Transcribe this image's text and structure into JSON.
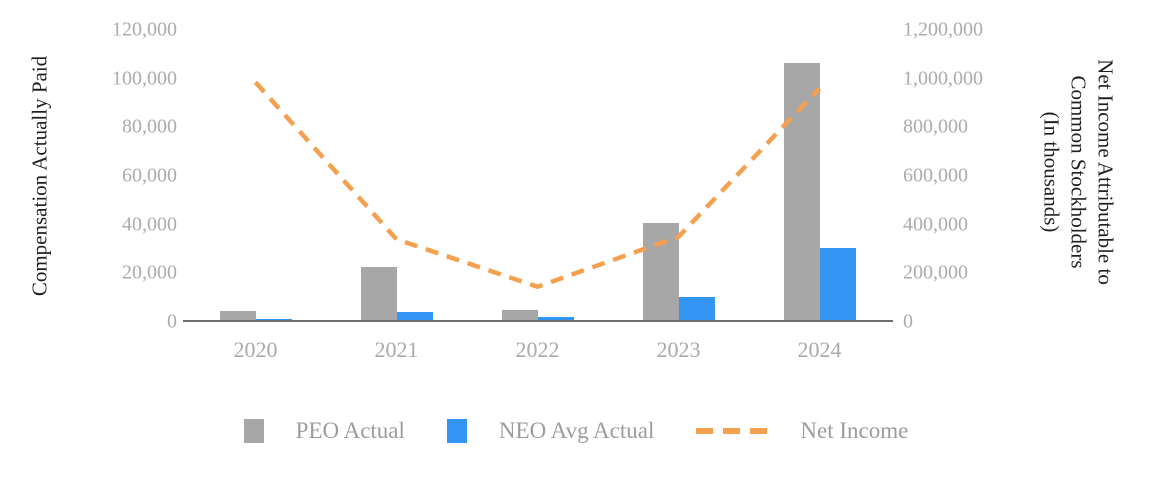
{
  "chart_data": {
    "type": "combo",
    "title": "",
    "categories": [
      "2020",
      "2021",
      "2022",
      "2023",
      "2024"
    ],
    "series": [
      {
        "name": "PEO Actual",
        "type": "bar",
        "axis": "left",
        "color": "#A7A7A7",
        "values": [
          4400,
          22500,
          5000,
          40700,
          106500
        ]
      },
      {
        "name": "NEO Avg Actual",
        "type": "bar",
        "axis": "left",
        "color": "#3595F5",
        "values": [
          1100,
          4100,
          1900,
          10200,
          30400
        ]
      },
      {
        "name": "Net Income",
        "type": "line",
        "axis": "right",
        "color": "#F5A04E",
        "dashed": true,
        "values": [
          985000,
          340000,
          145000,
          350000,
          960000
        ]
      }
    ],
    "left_axis": {
      "label": "Compensation Actually Paid",
      "min": 0,
      "max": 120000,
      "step": 20000,
      "ticks": [
        "0",
        "20,000",
        "40,000",
        "60,000",
        "80,000",
        "100,000",
        "120,000"
      ]
    },
    "right_axis": {
      "label": "Net Income Attributable to Common Stockholders (In thousands)",
      "label_lines": [
        "Net Income Attributable to",
        "Common Stockholders",
        "(In thousands)"
      ],
      "min": 0,
      "max": 1200000,
      "step": 200000,
      "ticks": [
        "0",
        "200,000",
        "400,000",
        "600,000",
        "800,000",
        "1,000,000",
        "1,200,000"
      ]
    },
    "legend_position": "bottom",
    "grid": "off",
    "colors": {
      "axis_line": "#6E6E6E",
      "tick_text": "#ABABAB",
      "legend_text": "#9C9C9C",
      "axis_title_text": "#1F1F1F"
    }
  }
}
